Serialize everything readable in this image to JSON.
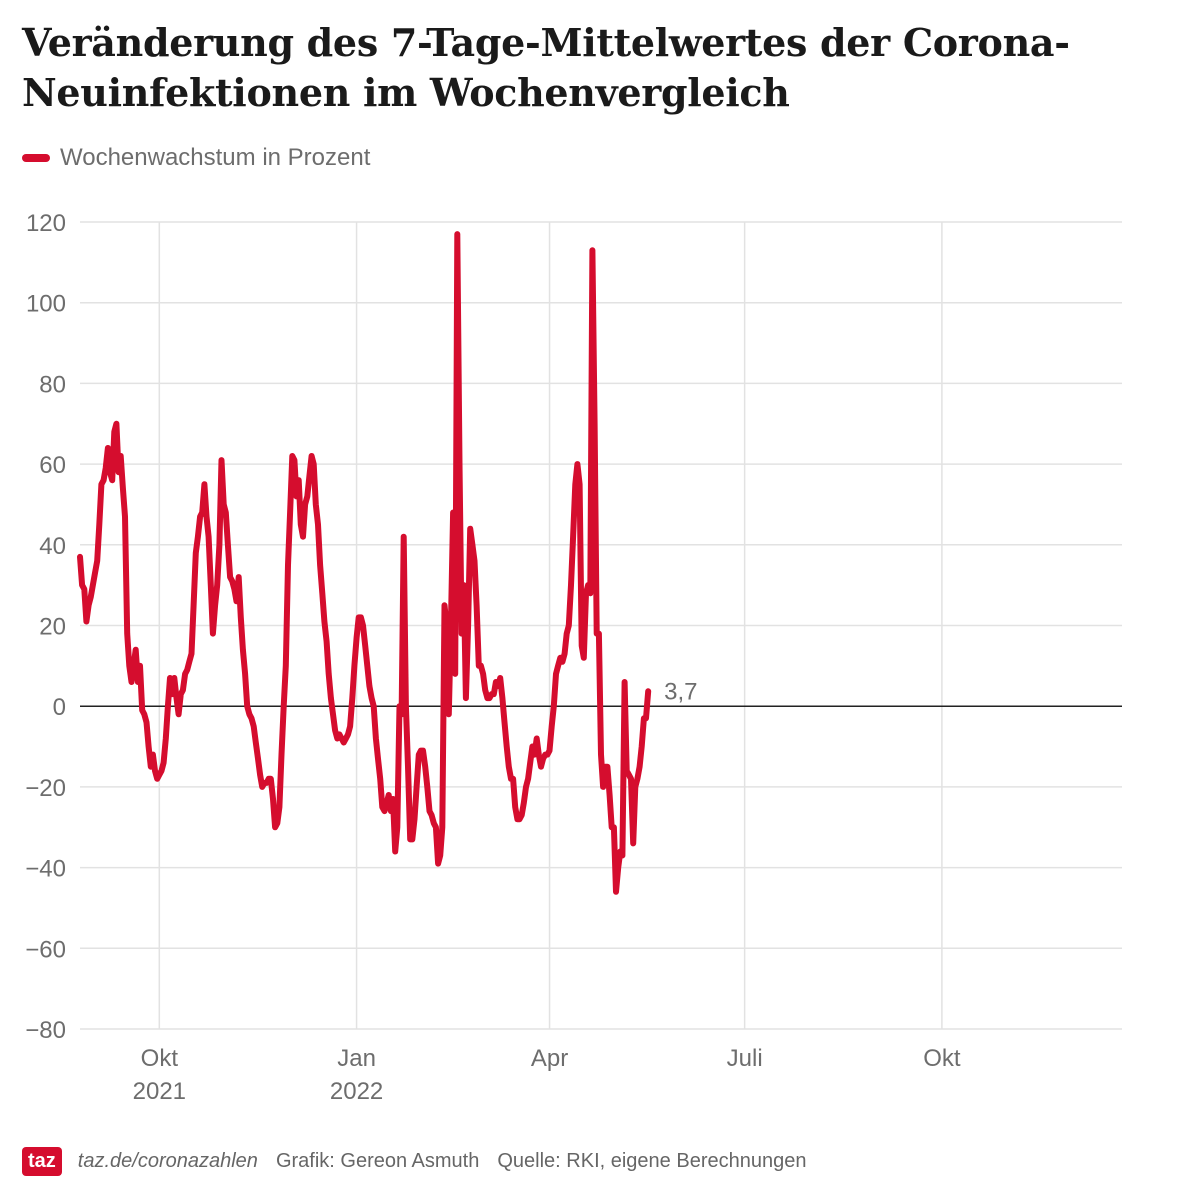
{
  "title": "Veränderung des 7-Tage-Mittelwertes der Corona-Neuinfektionen im Wochenvergleich",
  "legend": {
    "label": "Wochenwachstum in Prozent",
    "color": "#d50d2e"
  },
  "footer": {
    "logo": "taz",
    "url": "taz.de/coronazahlen",
    "credit": "Grafik: Gereon Asmuth",
    "source": "Quelle: RKI, eigene Berechnungen"
  },
  "chart_data": {
    "type": "line",
    "title": "Veränderung des 7-Tage-Mittelwertes der Corona-Neuinfektionen im Wochenvergleich",
    "xlabel": "",
    "ylabel": "",
    "ylim": [
      -80,
      120
    ],
    "yticks": [
      120,
      100,
      80,
      60,
      40,
      20,
      0,
      -20,
      -40,
      -60,
      -80
    ],
    "ytick_labels": [
      "120",
      "100",
      "80",
      "60",
      "40",
      "20",
      "0",
      "−20",
      "−40",
      "−60",
      "−80"
    ],
    "xlim_days": [
      0,
      486
    ],
    "xticks": [
      {
        "day": 37,
        "label": "Okt",
        "sublabel": "2021"
      },
      {
        "day": 129,
        "label": "Jan",
        "sublabel": "2022"
      },
      {
        "day": 219,
        "label": "Apr",
        "sublabel": ""
      },
      {
        "day": 310,
        "label": "Juli",
        "sublabel": ""
      },
      {
        "day": 402,
        "label": "Okt",
        "sublabel": ""
      }
    ],
    "grid": true,
    "reference_line": 0,
    "end_label": "3,7",
    "series": [
      {
        "name": "Wochenwachstum in Prozent",
        "color": "#d50d2e",
        "points": [
          [
            0,
            37
          ],
          [
            1,
            30
          ],
          [
            2,
            29
          ],
          [
            3,
            21
          ],
          [
            4,
            25
          ],
          [
            5,
            27
          ],
          [
            7,
            33
          ],
          [
            8,
            36
          ],
          [
            9,
            45
          ],
          [
            10,
            55
          ],
          [
            11,
            56
          ],
          [
            12,
            59
          ],
          [
            13,
            64
          ],
          [
            14,
            58
          ],
          [
            15,
            56
          ],
          [
            16,
            68
          ],
          [
            17,
            70
          ],
          [
            18,
            58
          ],
          [
            19,
            62
          ],
          [
            20,
            54
          ],
          [
            21,
            47
          ],
          [
            22,
            18
          ],
          [
            23,
            10
          ],
          [
            24,
            6
          ],
          [
            25,
            10
          ],
          [
            26,
            14
          ],
          [
            27,
            6
          ],
          [
            28,
            10
          ],
          [
            29,
            -1
          ],
          [
            30,
            -2
          ],
          [
            31,
            -4
          ],
          [
            32,
            -10
          ],
          [
            33,
            -15
          ],
          [
            34,
            -12
          ],
          [
            35,
            -16
          ],
          [
            36,
            -18
          ],
          [
            37,
            -17
          ],
          [
            38,
            -16
          ],
          [
            39,
            -14
          ],
          [
            40,
            -8
          ],
          [
            41,
            0
          ],
          [
            42,
            7
          ],
          [
            43,
            3
          ],
          [
            44,
            7
          ],
          [
            45,
            2
          ],
          [
            46,
            -2
          ],
          [
            47,
            3
          ],
          [
            48,
            4
          ],
          [
            49,
            8
          ],
          [
            50,
            9
          ],
          [
            51,
            11
          ],
          [
            52,
            13
          ],
          [
            53,
            25
          ],
          [
            54,
            38
          ],
          [
            55,
            42
          ],
          [
            56,
            47
          ],
          [
            57,
            48
          ],
          [
            58,
            55
          ],
          [
            59,
            47
          ],
          [
            60,
            42
          ],
          [
            61,
            30
          ],
          [
            62,
            18
          ],
          [
            63,
            25
          ],
          [
            64,
            30
          ],
          [
            65,
            40
          ],
          [
            66,
            61
          ],
          [
            67,
            50
          ],
          [
            68,
            48
          ],
          [
            69,
            40
          ],
          [
            70,
            32
          ],
          [
            71,
            31
          ],
          [
            72,
            29
          ],
          [
            73,
            26
          ],
          [
            74,
            32
          ],
          [
            75,
            22
          ],
          [
            76,
            14
          ],
          [
            77,
            8
          ],
          [
            78,
            0
          ],
          [
            79,
            -2
          ],
          [
            80,
            -3
          ],
          [
            81,
            -5
          ],
          [
            82,
            -9
          ],
          [
            83,
            -13
          ],
          [
            84,
            -17
          ],
          [
            85,
            -20
          ],
          [
            86,
            -19
          ],
          [
            87,
            -19
          ],
          [
            88,
            -18
          ],
          [
            89,
            -18
          ],
          [
            90,
            -23
          ],
          [
            91,
            -30
          ],
          [
            92,
            -29
          ],
          [
            93,
            -25
          ],
          [
            94,
            -12
          ],
          [
            95,
            0
          ],
          [
            96,
            10
          ],
          [
            97,
            35
          ],
          [
            98,
            48
          ],
          [
            99,
            62
          ],
          [
            100,
            61
          ],
          [
            101,
            52
          ],
          [
            102,
            56
          ],
          [
            103,
            45
          ],
          [
            104,
            42
          ],
          [
            105,
            50
          ],
          [
            106,
            52
          ],
          [
            107,
            57
          ],
          [
            108,
            62
          ],
          [
            109,
            60
          ],
          [
            110,
            50
          ],
          [
            111,
            45
          ],
          [
            112,
            35
          ],
          [
            113,
            28
          ],
          [
            114,
            21
          ],
          [
            115,
            16
          ],
          [
            116,
            8
          ],
          [
            117,
            2
          ],
          [
            118,
            -2
          ],
          [
            119,
            -6
          ],
          [
            120,
            -8
          ],
          [
            121,
            -7
          ],
          [
            122,
            -8
          ],
          [
            123,
            -9
          ],
          [
            124,
            -8
          ],
          [
            125,
            -7
          ],
          [
            126,
            -5
          ],
          [
            127,
            2
          ],
          [
            128,
            10
          ],
          [
            129,
            17
          ],
          [
            130,
            22
          ],
          [
            131,
            22
          ],
          [
            132,
            20
          ],
          [
            133,
            15
          ],
          [
            134,
            10
          ],
          [
            135,
            5
          ],
          [
            136,
            2
          ],
          [
            137,
            0
          ],
          [
            138,
            -8
          ],
          [
            139,
            -13
          ],
          [
            140,
            -18
          ],
          [
            141,
            -25
          ],
          [
            142,
            -26
          ],
          [
            143,
            -24
          ],
          [
            144,
            -22
          ],
          [
            145,
            -26
          ],
          [
            146,
            -23
          ],
          [
            147,
            -36
          ],
          [
            148,
            -30
          ],
          [
            149,
            0
          ],
          [
            150,
            -2
          ],
          [
            151,
            42
          ],
          [
            152,
            0
          ],
          [
            153,
            -15
          ],
          [
            154,
            -33
          ],
          [
            155,
            -33
          ],
          [
            156,
            -28
          ],
          [
            157,
            -20
          ],
          [
            158,
            -12
          ],
          [
            159,
            -11
          ],
          [
            160,
            -11
          ],
          [
            161,
            -15
          ],
          [
            162,
            -20
          ],
          [
            163,
            -26
          ],
          [
            164,
            -27
          ],
          [
            165,
            -29
          ],
          [
            166,
            -30
          ],
          [
            167,
            -39
          ],
          [
            168,
            -37
          ],
          [
            169,
            -30
          ],
          [
            170,
            25
          ],
          [
            171,
            20
          ],
          [
            172,
            -2
          ],
          [
            173,
            20
          ],
          [
            174,
            48
          ],
          [
            175,
            8
          ],
          [
            176,
            117
          ],
          [
            177,
            60
          ],
          [
            178,
            18
          ],
          [
            179,
            30
          ],
          [
            180,
            2
          ],
          [
            181,
            20
          ],
          [
            182,
            44
          ],
          [
            183,
            40
          ],
          [
            184,
            36
          ],
          [
            185,
            25
          ],
          [
            186,
            10
          ],
          [
            187,
            10
          ],
          [
            188,
            8
          ],
          [
            189,
            4
          ],
          [
            190,
            2
          ],
          [
            191,
            2
          ],
          [
            192,
            3
          ],
          [
            193,
            3
          ],
          [
            194,
            6
          ],
          [
            195,
            5
          ],
          [
            196,
            7
          ],
          [
            197,
            2
          ],
          [
            198,
            -4
          ],
          [
            199,
            -10
          ],
          [
            200,
            -15
          ],
          [
            201,
            -18
          ],
          [
            202,
            -18
          ],
          [
            203,
            -25
          ],
          [
            204,
            -28
          ],
          [
            205,
            -28
          ],
          [
            206,
            -27
          ],
          [
            207,
            -24
          ],
          [
            208,
            -20
          ],
          [
            209,
            -18
          ],
          [
            210,
            -14
          ],
          [
            211,
            -10
          ],
          [
            212,
            -12
          ],
          [
            213,
            -8
          ],
          [
            214,
            -12
          ],
          [
            215,
            -15
          ],
          [
            216,
            -13
          ],
          [
            217,
            -12
          ],
          [
            218,
            -12
          ],
          [
            219,
            -11
          ],
          [
            220,
            -5
          ],
          [
            221,
            0
          ],
          [
            222,
            8
          ],
          [
            223,
            10
          ],
          [
            224,
            12
          ],
          [
            225,
            11
          ],
          [
            226,
            13
          ],
          [
            227,
            18
          ],
          [
            228,
            20
          ],
          [
            229,
            30
          ],
          [
            230,
            42
          ],
          [
            231,
            55
          ],
          [
            232,
            60
          ],
          [
            233,
            55
          ],
          [
            234,
            15
          ],
          [
            235,
            12
          ],
          [
            236,
            28
          ],
          [
            237,
            30
          ],
          [
            238,
            28
          ],
          [
            239,
            113
          ],
          [
            240,
            70
          ],
          [
            241,
            18
          ],
          [
            242,
            18
          ],
          [
            243,
            -12
          ],
          [
            244,
            -20
          ],
          [
            245,
            -15
          ],
          [
            246,
            -15
          ],
          [
            247,
            -22
          ],
          [
            248,
            -30
          ],
          [
            249,
            -30
          ],
          [
            250,
            -46
          ],
          [
            251,
            -40
          ],
          [
            252,
            -36
          ],
          [
            253,
            -37
          ],
          [
            254,
            6
          ],
          [
            255,
            -16
          ],
          [
            256,
            -17
          ],
          [
            257,
            -18
          ],
          [
            258,
            -34
          ],
          [
            259,
            -20
          ],
          [
            260,
            -18
          ],
          [
            261,
            -15
          ],
          [
            262,
            -10
          ],
          [
            263,
            -3
          ],
          [
            264,
            -3
          ],
          [
            265,
            3.7
          ]
        ]
      }
    ]
  }
}
